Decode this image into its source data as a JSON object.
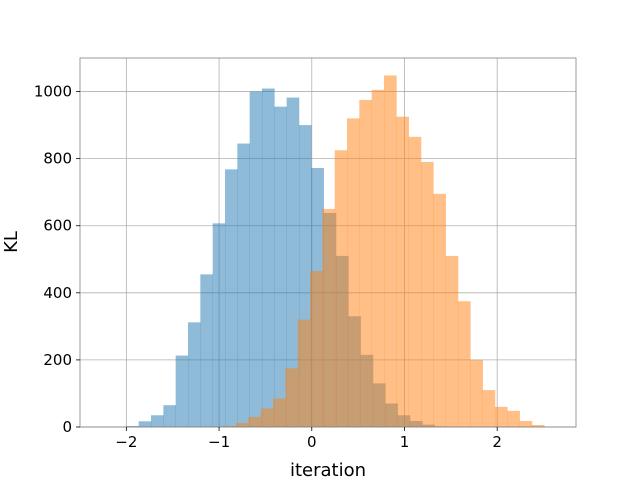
{
  "chart_data": {
    "type": "bar",
    "subtype": "overlapping-histogram",
    "xlabel": "iteration",
    "ylabel": "KL",
    "xlim": [
      -2.5,
      2.85
    ],
    "ylim": [
      0,
      1100
    ],
    "xticks": [
      -2,
      -1,
      0,
      1,
      2
    ],
    "yticks": [
      0,
      200,
      400,
      600,
      800,
      1000
    ],
    "grid": true,
    "series": [
      {
        "color": "#1f77b4",
        "opacity": 0.5,
        "bin_start": -2.0,
        "bin_width": 0.133,
        "values": [
          3,
          17,
          35,
          65,
          213,
          312,
          455,
          607,
          768,
          845,
          1000,
          1009,
          955,
          982,
          900,
          772,
          638,
          510,
          330,
          215,
          130,
          70,
          35,
          18,
          7,
          2,
          1
        ]
      },
      {
        "color": "#ff7f0e",
        "opacity": 0.5,
        "bin_start": -0.95,
        "bin_width": 0.133,
        "values": [
          3,
          12,
          30,
          55,
          85,
          175,
          320,
          465,
          650,
          825,
          920,
          975,
          1005,
          1048,
          925,
          865,
          790,
          695,
          510,
          375,
          200,
          110,
          60,
          48,
          18,
          6,
          1
        ]
      }
    ]
  }
}
